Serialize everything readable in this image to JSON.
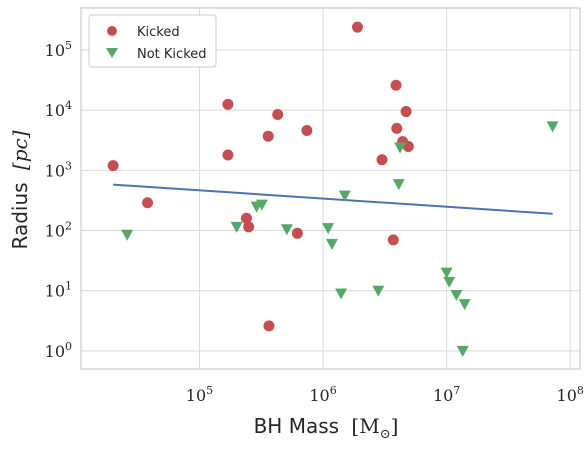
{
  "chart_data": {
    "type": "scatter",
    "xlabel_text": "BH Mass",
    "xlabel_unit": "[M",
    "xlabel_unit_sub": "⊙",
    "xlabel_unit_close": "]",
    "ylabel_text": "Radius",
    "ylabel_unit": "[pc]",
    "xscale": "log",
    "yscale": "log",
    "xlim": [
      11000,
      120000000
    ],
    "ylim": [
      0.5,
      500000
    ],
    "grid": true,
    "legend_position": "top-left",
    "x_ticks": [
      {
        "value": 100000,
        "base": "10",
        "exp": "5"
      },
      {
        "value": 1000000,
        "base": "10",
        "exp": "6"
      },
      {
        "value": 10000000,
        "base": "10",
        "exp": "7"
      },
      {
        "value": 100000000,
        "base": "10",
        "exp": "8"
      }
    ],
    "y_ticks": [
      {
        "value": 1,
        "base": "10",
        "exp": "0"
      },
      {
        "value": 10,
        "base": "10",
        "exp": "1"
      },
      {
        "value": 100,
        "base": "10",
        "exp": "2"
      },
      {
        "value": 1000,
        "base": "10",
        "exp": "3"
      },
      {
        "value": 10000,
        "base": "10",
        "exp": "4"
      },
      {
        "value": 100000,
        "base": "10",
        "exp": "5"
      }
    ],
    "series": [
      {
        "name": "Kicked",
        "marker": "circle",
        "color": "#c44e52",
        "points": [
          {
            "x": 20000,
            "y": 1200
          },
          {
            "x": 38000,
            "y": 290
          },
          {
            "x": 170000,
            "y": 12500
          },
          {
            "x": 170000,
            "y": 1800
          },
          {
            "x": 240000,
            "y": 160
          },
          {
            "x": 250000,
            "y": 115
          },
          {
            "x": 360000,
            "y": 3700
          },
          {
            "x": 365000,
            "y": 2.6
          },
          {
            "x": 430000,
            "y": 8500
          },
          {
            "x": 620000,
            "y": 90
          },
          {
            "x": 740000,
            "y": 4600
          },
          {
            "x": 1900000,
            "y": 240000
          },
          {
            "x": 3000000,
            "y": 1500
          },
          {
            "x": 3700000,
            "y": 70
          },
          {
            "x": 3900000,
            "y": 26000
          },
          {
            "x": 3950000,
            "y": 5000
          },
          {
            "x": 4400000,
            "y": 3000
          },
          {
            "x": 4700000,
            "y": 9500
          },
          {
            "x": 4900000,
            "y": 2500
          }
        ]
      },
      {
        "name": "Not Kicked",
        "marker": "triangle-down",
        "color": "#55a868",
        "points": [
          {
            "x": 26000,
            "y": 85
          },
          {
            "x": 200000,
            "y": 115
          },
          {
            "x": 290000,
            "y": 250
          },
          {
            "x": 320000,
            "y": 270
          },
          {
            "x": 510000,
            "y": 105
          },
          {
            "x": 1100000,
            "y": 110
          },
          {
            "x": 1180000,
            "y": 60
          },
          {
            "x": 1400000,
            "y": 9
          },
          {
            "x": 1500000,
            "y": 380
          },
          {
            "x": 2800000,
            "y": 10
          },
          {
            "x": 4100000,
            "y": 590
          },
          {
            "x": 4200000,
            "y": 2400
          },
          {
            "x": 10000000,
            "y": 20
          },
          {
            "x": 10500000,
            "y": 14
          },
          {
            "x": 12000000,
            "y": 8.5
          },
          {
            "x": 13500000,
            "y": 1
          },
          {
            "x": 14000000,
            "y": 6
          },
          {
            "x": 72000000,
            "y": 5400
          }
        ]
      }
    ],
    "fit_line": {
      "color": "#4c72b0",
      "points": [
        {
          "x": 20000,
          "y": 580
        },
        {
          "x": 72000000,
          "y": 190
        }
      ]
    }
  }
}
